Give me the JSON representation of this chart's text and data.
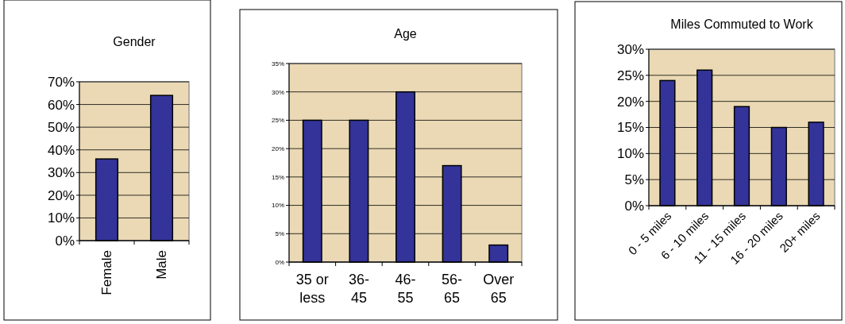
{
  "chart_data": [
    {
      "type": "bar",
      "title": "Gender",
      "categories": [
        "Female",
        "Male"
      ],
      "values": [
        36,
        64
      ],
      "color": "#333399",
      "ylim": [
        0,
        70
      ],
      "yticks": [
        {
          "value": 0,
          "label": "0%"
        },
        {
          "value": 10,
          "label": "10%"
        },
        {
          "value": 20,
          "label": "20%"
        },
        {
          "value": 30,
          "label": "30%"
        },
        {
          "value": 40,
          "label": "40%"
        },
        {
          "value": 50,
          "label": "50%"
        },
        {
          "value": 60,
          "label": "60%"
        },
        {
          "value": 70,
          "label": "70%"
        }
      ],
      "grid": "y"
    },
    {
      "type": "bar",
      "title": "Age",
      "categories": [
        "35 or less",
        "36-45",
        "46-55",
        "56-65",
        "Over 65"
      ],
      "values": [
        25,
        25,
        30,
        17,
        3
      ],
      "color": "#333399",
      "ylim": [
        0,
        35
      ],
      "yticks": [
        {
          "value": 0,
          "label": "0%"
        },
        {
          "value": 5,
          "label": "5%"
        },
        {
          "value": 10,
          "label": "10%"
        },
        {
          "value": 15,
          "label": "15%"
        },
        {
          "value": 20,
          "label": "20%"
        },
        {
          "value": 25,
          "label": "25%"
        },
        {
          "value": 30,
          "label": "30%"
        },
        {
          "value": 35,
          "label": "35%"
        }
      ],
      "grid": "y"
    },
    {
      "type": "bar",
      "title": "Miles Commuted to Work",
      "categories": [
        "0 - 5 miles",
        "6 - 10 miles",
        "11 - 15 miles",
        "16 - 20 miles",
        "20+ miles"
      ],
      "values": [
        24,
        26,
        19,
        15,
        16
      ],
      "color": "#333399",
      "ylim": [
        0,
        30
      ],
      "yticks": [
        {
          "value": 0,
          "label": "0%"
        },
        {
          "value": 5,
          "label": "5%"
        },
        {
          "value": 10,
          "label": "10%"
        },
        {
          "value": 15,
          "label": "15%"
        },
        {
          "value": 20,
          "label": "20%"
        },
        {
          "value": 25,
          "label": "25%"
        },
        {
          "value": 30,
          "label": "30%"
        }
      ],
      "grid": "y"
    }
  ]
}
